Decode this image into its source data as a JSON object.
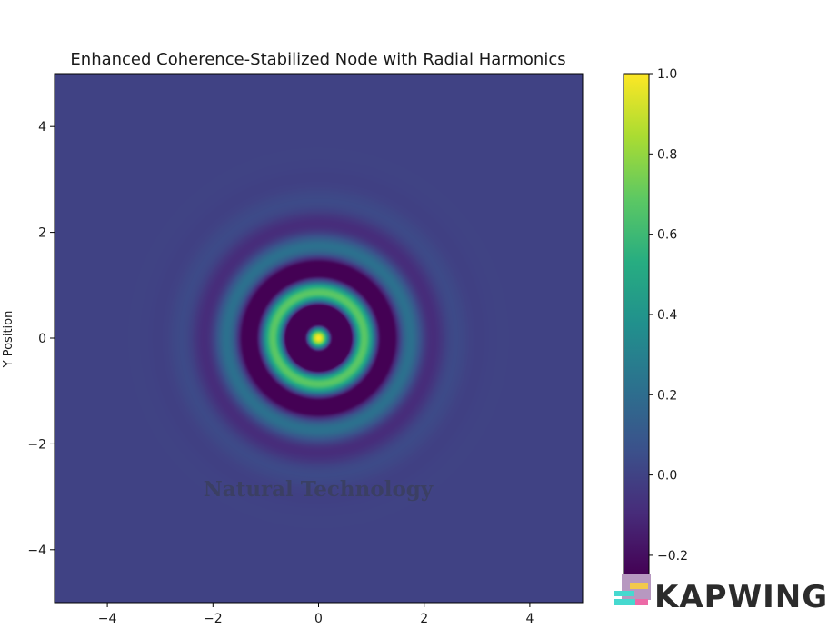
{
  "chart_data": {
    "type": "heatmap",
    "title": "Enhanced Coherence-Stabilized Node with Radial Harmonics",
    "xlabel": "",
    "ylabel": "Y Position",
    "xlim": [
      -5,
      5
    ],
    "ylim": [
      -5,
      5
    ],
    "x_ticks": [
      -4,
      -2,
      0,
      2,
      4
    ],
    "y_ticks": [
      -4,
      -2,
      0,
      2,
      4
    ],
    "x_tick_labels": [
      "−4",
      "−2",
      "0",
      "2",
      "4"
    ],
    "y_tick_labels": [
      "−4",
      "−2",
      "0",
      "2",
      "4"
    ],
    "field": "radially symmetric damped cosine, exp(-r^2/2)*cos(2*pi*r*1.13)",
    "value_range": [
      -0.25,
      1.0
    ],
    "colormap": "viridis",
    "colorbar": {
      "range": [
        -0.25,
        1.0
      ],
      "ticks": [
        1.0,
        0.8,
        0.6,
        0.4,
        0.2,
        0.0,
        -0.2
      ],
      "tick_labels": [
        "1.0",
        "0.8",
        "0.6",
        "0.4",
        "0.2",
        "0.0",
        "−0.2"
      ]
    }
  },
  "watermark": {
    "text": "Natural Technology"
  },
  "brand": {
    "text": "KAPWING"
  },
  "colors": {
    "plot_background": "#3b528b",
    "axis": "#000000"
  }
}
